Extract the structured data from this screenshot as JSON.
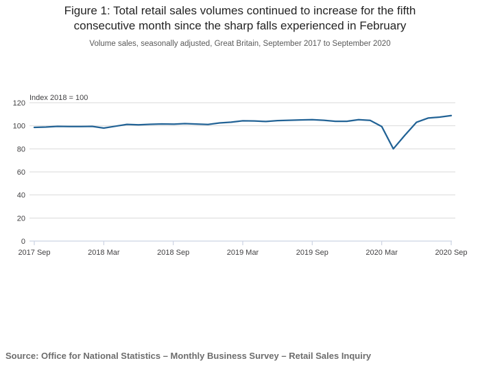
{
  "header": {
    "title_line1": "Figure 1: Total retail sales volumes continued to increase for the fifth",
    "title_line2": "consecutive month since the sharp falls experienced in February",
    "subtitle": "Volume sales, seasonally adjusted, Great Britain, September 2017 to September 2020"
  },
  "chart_data": {
    "type": "line",
    "title": "Figure 1: Total retail sales volumes continued to increase for the fifth consecutive month since the sharp falls experienced in February",
    "subtitle": "Volume sales, seasonally adjusted, Great Britain, September 2017 to September 2020",
    "unit_label": "Index 2018 = 100",
    "x": [
      "2017 Sep",
      "2017 Oct",
      "2017 Nov",
      "2017 Dec",
      "2018 Jan",
      "2018 Feb",
      "2018 Mar",
      "2018 Apr",
      "2018 May",
      "2018 Jun",
      "2018 Jul",
      "2018 Aug",
      "2018 Sep",
      "2018 Oct",
      "2018 Nov",
      "2018 Dec",
      "2019 Jan",
      "2019 Feb",
      "2019 Mar",
      "2019 Apr",
      "2019 May",
      "2019 Jun",
      "2019 Jul",
      "2019 Aug",
      "2019 Sep",
      "2019 Oct",
      "2019 Nov",
      "2019 Dec",
      "2020 Jan",
      "2020 Feb",
      "2020 Mar",
      "2020 Apr",
      "2020 May",
      "2020 Jun",
      "2020 Jul",
      "2020 Aug",
      "2020 Sep"
    ],
    "values": [
      98.6,
      98.9,
      99.5,
      99.3,
      99.3,
      99.5,
      98.0,
      99.6,
      101.2,
      100.8,
      101.3,
      101.6,
      101.4,
      101.9,
      101.5,
      101.1,
      102.5,
      103.1,
      104.3,
      104.2,
      103.7,
      104.5,
      104.8,
      105.1,
      105.3,
      104.8,
      103.9,
      103.9,
      105.3,
      104.7,
      99.4,
      80.0,
      91.8,
      103.0,
      106.7,
      107.5,
      108.9
    ],
    "x_tick_labels": [
      "2017 Sep",
      "2018 Mar",
      "2018 Sep",
      "2019 Mar",
      "2019 Sep",
      "2020 Mar",
      "2020 Sep"
    ],
    "y_ticks": [
      0,
      20,
      40,
      60,
      80,
      100,
      120
    ],
    "ylim": [
      0,
      120
    ],
    "grid": "horizontal",
    "legend": "none",
    "line_color": "#216295",
    "gridline_color": "#d9d9d9",
    "axis_color": "#ccd3e3",
    "axis_text_color": "#414042"
  },
  "footer": {
    "source": "Source: Office for National Statistics – Monthly Business Survey – Retail Sales Inquiry"
  }
}
